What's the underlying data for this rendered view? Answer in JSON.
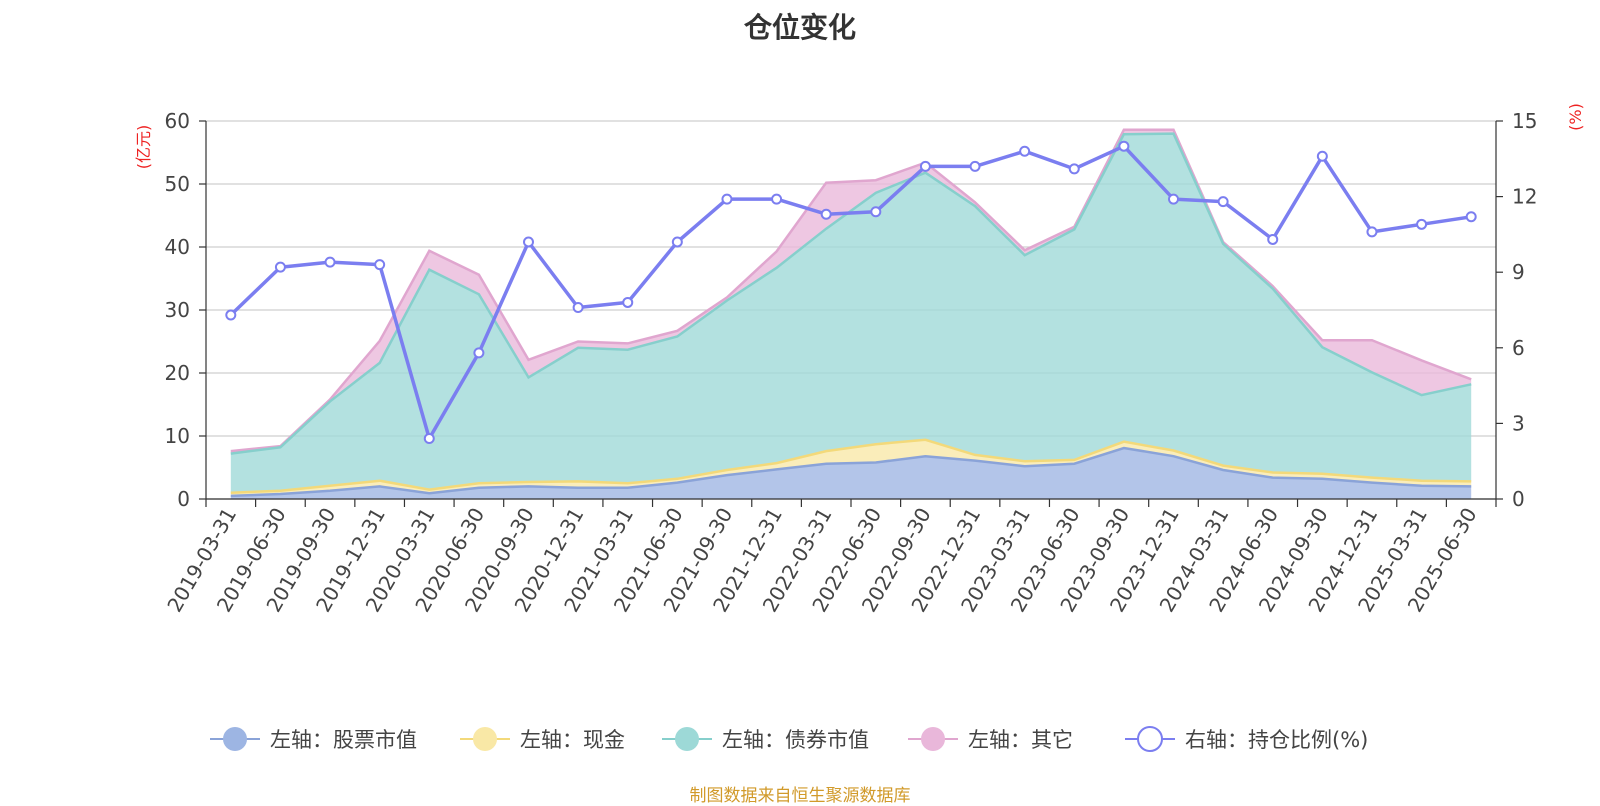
{
  "chart_data": {
    "type": "area",
    "title": "仓位变化",
    "source_note": "制图数据来自恒生聚源数据库",
    "left_axis_unit": "(亿元)",
    "right_axis_unit": "(%)",
    "left_ylim": [
      0,
      60
    ],
    "left_ticks": [
      "0",
      "10",
      "20",
      "30",
      "40",
      "50",
      "60"
    ],
    "right_ylim": [
      0,
      15
    ],
    "right_ticks": [
      "0",
      "3",
      "6",
      "9",
      "12",
      "15"
    ],
    "grid": true,
    "legend_position": "bottom",
    "categories": [
      "2019-03-31",
      "2019-06-30",
      "2019-09-30",
      "2019-12-31",
      "2020-03-31",
      "2020-06-30",
      "2020-09-30",
      "2020-12-31",
      "2021-03-31",
      "2021-06-30",
      "2021-09-30",
      "2021-12-31",
      "2022-03-31",
      "2022-06-30",
      "2022-09-30",
      "2022-12-31",
      "2023-03-31",
      "2023-06-30",
      "2023-09-30",
      "2023-12-31",
      "2024-03-31",
      "2024-06-30",
      "2024-09-30",
      "2024-12-31",
      "2025-03-31",
      "2025-06-30"
    ],
    "stacked_series": [
      {
        "name": "左轴：股票市值",
        "axis": "left",
        "color": "#9db5e3",
        "values": [
          0.5,
          0.8,
          1.3,
          2.0,
          0.9,
          1.8,
          2.0,
          1.8,
          1.8,
          2.6,
          3.8,
          4.7,
          5.6,
          5.8,
          6.8,
          6.1,
          5.2,
          5.6,
          8.1,
          6.8,
          4.6,
          3.4,
          3.2,
          2.6,
          2.1,
          2.0
        ]
      },
      {
        "name": "左轴：现金",
        "axis": "left",
        "color": "#f9e8a6",
        "values": [
          0.5,
          0.5,
          0.8,
          0.9,
          0.6,
          0.7,
          0.7,
          1.0,
          0.7,
          0.6,
          0.8,
          1.0,
          2.0,
          2.9,
          2.6,
          0.9,
          0.8,
          0.6,
          1.0,
          0.9,
          0.7,
          0.8,
          0.8,
          0.8,
          0.8,
          0.8
        ]
      },
      {
        "name": "左轴：债券市值",
        "axis": "left",
        "color": "#9dd9d7",
        "values": [
          6.2,
          6.9,
          13.4,
          18.7,
          34.9,
          30.0,
          16.6,
          21.2,
          21.2,
          22.6,
          26.9,
          31.0,
          35.3,
          39.9,
          42.4,
          39.5,
          32.7,
          36.6,
          48.8,
          50.3,
          35.2,
          29.2,
          20.1,
          16.7,
          13.6,
          15.4
        ]
      },
      {
        "name": "左轴：其它",
        "axis": "left",
        "color": "#e9b7da",
        "values": [
          0.4,
          0.2,
          0.3,
          3.5,
          3.0,
          3.1,
          2.8,
          1.0,
          1.0,
          0.9,
          0.5,
          2.6,
          7.3,
          2.0,
          1.6,
          0.6,
          0.8,
          0.4,
          0.7,
          0.6,
          0.3,
          0.4,
          1.1,
          5.1,
          5.5,
          0.8
        ]
      }
    ],
    "line_series": {
      "name": "右轴：持仓比例(%)",
      "axis": "right",
      "color": "#7b7ef0",
      "values": [
        7.3,
        9.2,
        9.4,
        9.3,
        2.4,
        5.8,
        10.2,
        7.6,
        7.8,
        10.2,
        11.9,
        11.9,
        11.3,
        11.4,
        13.2,
        13.2,
        13.8,
        13.1,
        14.0,
        11.9,
        11.8,
        10.3,
        13.6,
        10.6,
        10.9,
        11.2
      ]
    }
  }
}
